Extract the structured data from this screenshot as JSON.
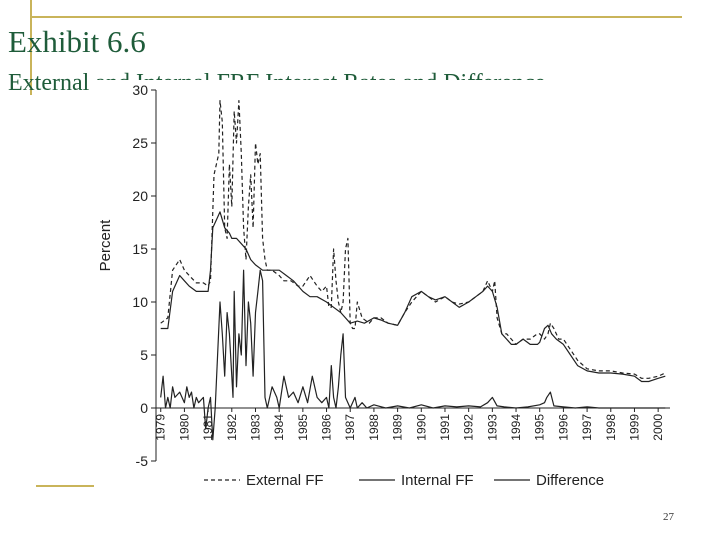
{
  "slide": {
    "title": "Exhibit 6.6",
    "subtitle": "External and Internal FRF Interest Rates and Difference",
    "page_number": "27"
  },
  "colors": {
    "accent": "#c9b45a",
    "title": "#1f5c3a",
    "chart_line": "#222222"
  },
  "chart_data": {
    "type": "line",
    "title": "External and Internal FRF Interest Rates and Difference",
    "xlabel": "",
    "ylabel": "Percent",
    "ylim": [
      -5,
      30
    ],
    "yticks": [
      -5,
      0,
      5,
      10,
      15,
      20,
      25,
      30
    ],
    "xlim": [
      1978.8,
      2000.5
    ],
    "xtick_labels": [
      "1979",
      "1980",
      "1981",
      "1982",
      "1983",
      "1984",
      "1985",
      "1986",
      "1987",
      "1988",
      "1989",
      "1990",
      "1991",
      "1992",
      "1993",
      "1994",
      "1995",
      "1996",
      "1997",
      "1998",
      "1999",
      "2000"
    ],
    "legend": [
      "External FF",
      "Internal FF",
      "Difference"
    ],
    "legend_position": "bottom",
    "series": [
      {
        "name": "External FF",
        "style": "dashed",
        "x": [
          1979.0,
          1979.3,
          1979.5,
          1979.8,
          1980.0,
          1980.2,
          1980.5,
          1980.8,
          1981.0,
          1981.1,
          1981.25,
          1981.35,
          1981.45,
          1981.5,
          1981.6,
          1981.7,
          1981.8,
          1981.9,
          1982.0,
          1982.1,
          1982.2,
          1982.3,
          1982.4,
          1982.5,
          1982.6,
          1982.7,
          1982.8,
          1982.9,
          1983.0,
          1983.1,
          1983.2,
          1983.3,
          1983.4,
          1983.5,
          1983.7,
          1984.0,
          1984.2,
          1984.5,
          1984.8,
          1985.0,
          1985.3,
          1985.6,
          1985.8,
          1986.0,
          1986.1,
          1986.2,
          1986.3,
          1986.4,
          1986.5,
          1986.6,
          1986.7,
          1986.8,
          1986.9,
          1987.0,
          1987.1,
          1987.2,
          1987.3,
          1987.5,
          1987.8,
          1988.0,
          1988.3,
          1988.6,
          1989.0,
          1989.3,
          1989.6,
          1990.0,
          1990.3,
          1990.6,
          1991.0,
          1991.3,
          1991.6,
          1992.0,
          1992.3,
          1992.6,
          1992.8,
          1993.0,
          1993.1,
          1993.2,
          1993.4,
          1993.6,
          1993.8,
          1994.0,
          1994.3,
          1994.6,
          1994.9,
          1995.0,
          1995.2,
          1995.35,
          1995.45,
          1995.6,
          1995.8,
          1996.0,
          1996.3,
          1996.6,
          1997.0,
          1997.5,
          1998.0,
          1998.5,
          1999.0,
          1999.3,
          1999.6,
          2000.0,
          2000.3
        ],
        "y": [
          8,
          8.5,
          13,
          14,
          13,
          12.5,
          11.8,
          11.8,
          11.5,
          12,
          22,
          23,
          24,
          29,
          27,
          17,
          16,
          23,
          19,
          28,
          25,
          29,
          24,
          17,
          14,
          19,
          22,
          17,
          25,
          23,
          24,
          16,
          14,
          13,
          13,
          12.5,
          12,
          12,
          11.5,
          11.5,
          12.5,
          11.5,
          11,
          11.5,
          9.5,
          9.5,
          15,
          12,
          10,
          9,
          10,
          15,
          16,
          8,
          7.5,
          7.5,
          10,
          8.5,
          8,
          8.5,
          8.5,
          8,
          7.8,
          9,
          10,
          11,
          10.5,
          10,
          10.5,
          10,
          9.8,
          10,
          10.5,
          11,
          12,
          11,
          12,
          8.5,
          7,
          7,
          6.5,
          6,
          6.5,
          6.5,
          7,
          7,
          6.5,
          7,
          8,
          7.5,
          6.5,
          6.5,
          5.5,
          4.5,
          3.7,
          3.5,
          3.5,
          3.3,
          3.2,
          2.8,
          2.8,
          3,
          3.3
        ]
      },
      {
        "name": "Internal FF",
        "style": "solid",
        "x": [
          1979.0,
          1979.3,
          1979.5,
          1979.8,
          1980.0,
          1980.2,
          1980.5,
          1980.8,
          1981.0,
          1981.1,
          1981.2,
          1981.4,
          1981.5,
          1981.7,
          1981.9,
          1982.0,
          1982.2,
          1982.4,
          1982.6,
          1982.8,
          1983.0,
          1983.3,
          1983.6,
          1984.0,
          1984.3,
          1984.6,
          1985.0,
          1985.3,
          1985.6,
          1986.0,
          1986.3,
          1986.6,
          1986.8,
          1987.0,
          1987.3,
          1987.6,
          1988.0,
          1988.3,
          1988.6,
          1989.0,
          1989.3,
          1989.6,
          1990.0,
          1990.3,
          1990.6,
          1991.0,
          1991.3,
          1991.6,
          1992.0,
          1992.3,
          1992.6,
          1992.8,
          1993.0,
          1993.2,
          1993.4,
          1993.6,
          1993.8,
          1994.0,
          1994.3,
          1994.6,
          1994.9,
          1995.0,
          1995.2,
          1995.35,
          1995.5,
          1995.7,
          1996.0,
          1996.3,
          1996.6,
          1997.0,
          1997.5,
          1998.0,
          1998.5,
          1999.0,
          1999.3,
          1999.6,
          2000.0,
          2000.3
        ],
        "y": [
          7.5,
          7.5,
          11,
          12.5,
          12,
          11.5,
          11,
          11,
          11,
          13,
          17,
          18,
          18.5,
          17,
          16.5,
          16,
          16,
          15.5,
          15,
          14,
          13.5,
          13,
          13,
          13,
          12.5,
          12,
          11,
          10.5,
          10.5,
          10,
          9.5,
          9,
          8.5,
          8,
          8.2,
          8,
          8.5,
          8.3,
          8,
          7.8,
          9,
          10.5,
          11,
          10.5,
          10.2,
          10.5,
          10,
          9.5,
          10,
          10.5,
          11,
          11.5,
          11,
          9.5,
          7,
          6.5,
          6,
          6,
          6.5,
          6,
          6,
          6.2,
          7.5,
          7.8,
          7,
          6.5,
          6,
          5,
          4,
          3.5,
          3.3,
          3.3,
          3.2,
          3,
          2.5,
          2.5,
          2.8,
          3
        ]
      },
      {
        "name": "Difference",
        "style": "solid",
        "x": [
          1979.0,
          1979.1,
          1979.2,
          1979.3,
          1979.4,
          1979.5,
          1979.6,
          1979.8,
          1980.0,
          1980.1,
          1980.2,
          1980.3,
          1980.4,
          1980.5,
          1980.6,
          1980.8,
          1980.9,
          1981.0,
          1981.1,
          1981.2,
          1981.3,
          1981.4,
          1981.5,
          1981.6,
          1981.7,
          1981.8,
          1981.9,
          1982.0,
          1982.05,
          1982.1,
          1982.2,
          1982.3,
          1982.4,
          1982.5,
          1982.6,
          1982.7,
          1982.8,
          1982.9,
          1983.0,
          1983.1,
          1983.2,
          1983.3,
          1983.4,
          1983.5,
          1983.7,
          1983.9,
          1984.0,
          1984.2,
          1984.4,
          1984.6,
          1984.8,
          1985.0,
          1985.2,
          1985.4,
          1985.6,
          1985.8,
          1986.0,
          1986.1,
          1986.2,
          1986.3,
          1986.4,
          1986.5,
          1986.6,
          1986.7,
          1986.8,
          1987.0,
          1987.2,
          1987.3,
          1987.5,
          1987.7,
          1988.0,
          1988.5,
          1989.0,
          1989.5,
          1990.0,
          1990.5,
          1991.0,
          1991.5,
          1992.0,
          1992.5,
          1992.8,
          1993.0,
          1993.2,
          1993.5,
          1994.0,
          1994.5,
          1995.0,
          1995.2,
          1995.3,
          1995.45,
          1995.6,
          1996.0,
          1996.5,
          1997.0,
          1997.5,
          1998.0,
          1998.5,
          1999.0,
          1999.5,
          2000.0,
          2000.3
        ],
        "y": [
          1,
          3,
          0,
          1,
          0,
          2,
          1,
          1.5,
          0.5,
          2,
          1,
          1.5,
          0,
          1,
          0.5,
          1,
          -2,
          0,
          1,
          -3,
          0,
          5,
          10,
          7,
          3,
          9,
          7,
          3,
          1,
          11,
          2,
          7,
          5,
          13,
          4,
          10,
          8,
          3,
          9,
          11,
          13,
          12,
          1,
          0,
          2,
          1,
          0,
          3,
          1,
          1.5,
          0.5,
          2,
          0.5,
          3,
          1,
          0.5,
          1,
          0,
          4,
          1,
          0,
          2,
          5,
          7,
          1,
          0,
          1,
          0,
          0.5,
          0,
          0.3,
          0,
          0.2,
          0,
          0.3,
          0,
          0.2,
          0.1,
          0.2,
          0.1,
          0.5,
          1,
          0.2,
          0.1,
          0,
          0.1,
          0.3,
          0.5,
          1,
          1.5,
          0.2,
          0.1,
          0,
          0.1,
          0,
          0,
          0,
          0,
          0,
          0,
          0
        ]
      }
    ]
  }
}
